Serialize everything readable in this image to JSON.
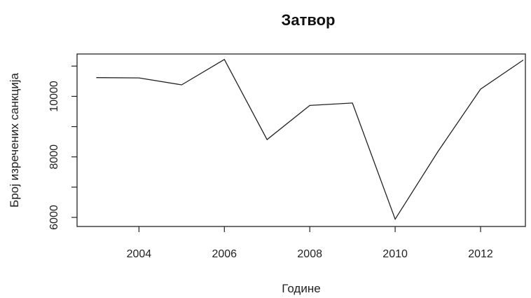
{
  "chart_data": {
    "type": "line",
    "title": "Затвор",
    "xlabel": "Године",
    "ylabel": "Број изречених санкција",
    "x": [
      2003,
      2004,
      2005,
      2006,
      2007,
      2008,
      2009,
      2010,
      2011,
      2012,
      2013
    ],
    "series": [
      {
        "values": [
          10620,
          10610,
          10380,
          11220,
          8570,
          9700,
          9780,
          5940,
          8170,
          10240,
          11200
        ]
      }
    ],
    "xlim": [
      2002.55,
      2013.05
    ],
    "ylim": [
      5700,
      11400
    ],
    "xticks": [
      2004,
      2006,
      2008,
      2010,
      2012
    ],
    "xtick_labels": [
      "2004",
      "2006",
      "2008",
      "2010",
      "2012"
    ],
    "yticks": [
      6000,
      7000,
      8000,
      9000,
      10000,
      11000
    ],
    "ytick_labels": [
      "6000",
      "",
      "8000",
      "",
      "10000",
      ""
    ],
    "grid": false,
    "line_color": "#222222"
  }
}
